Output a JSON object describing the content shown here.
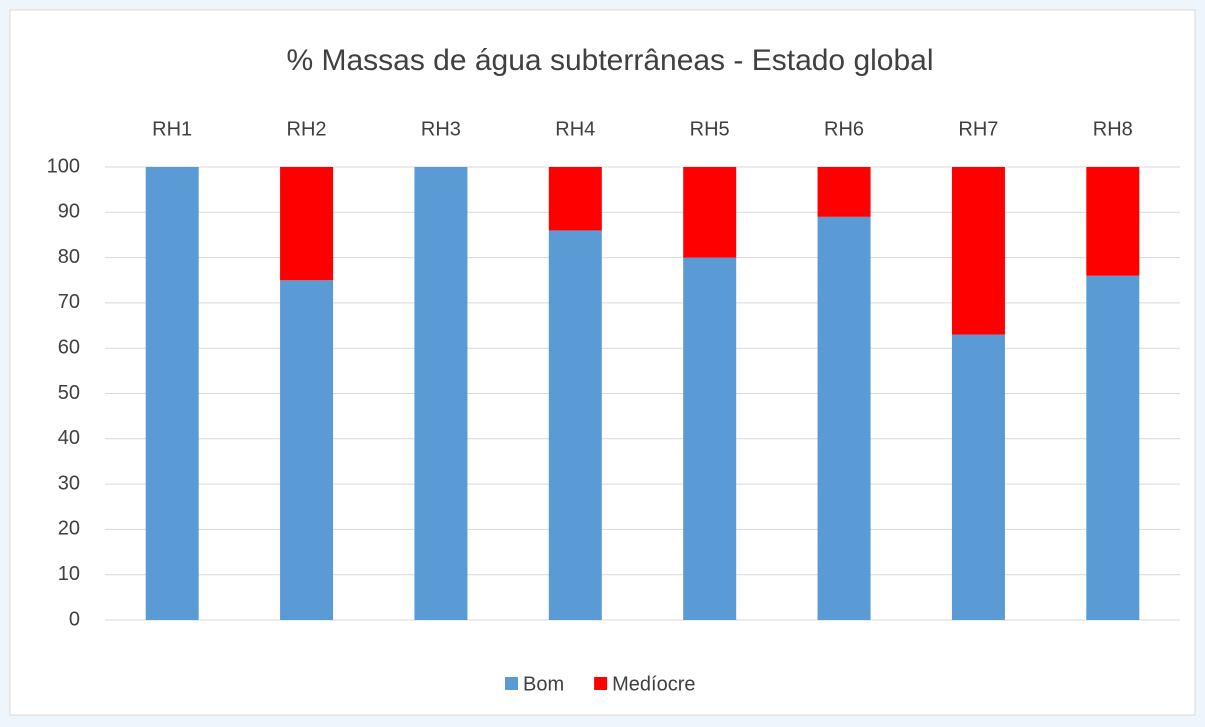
{
  "chart_data": {
    "type": "stacked_bar",
    "title": "% Massas de água subterrâneas - Estado global",
    "categories": [
      "RH1",
      "RH2",
      "RH3",
      "RH4",
      "RH5",
      "RH6",
      "RH7",
      "RH8"
    ],
    "series": [
      {
        "name": "Bom",
        "color": "#5b9bd5",
        "values": [
          100,
          75,
          100,
          86,
          80,
          89,
          63,
          76
        ]
      },
      {
        "name": "Medíocre",
        "color": "#ff0000",
        "values": [
          0,
          25,
          0,
          14,
          20,
          11,
          37,
          24
        ]
      }
    ],
    "ylim": [
      0,
      100
    ],
    "yticks": [
      0,
      10,
      20,
      30,
      40,
      50,
      60,
      70,
      80,
      90,
      100
    ],
    "grid": true,
    "legend": "bottom"
  }
}
